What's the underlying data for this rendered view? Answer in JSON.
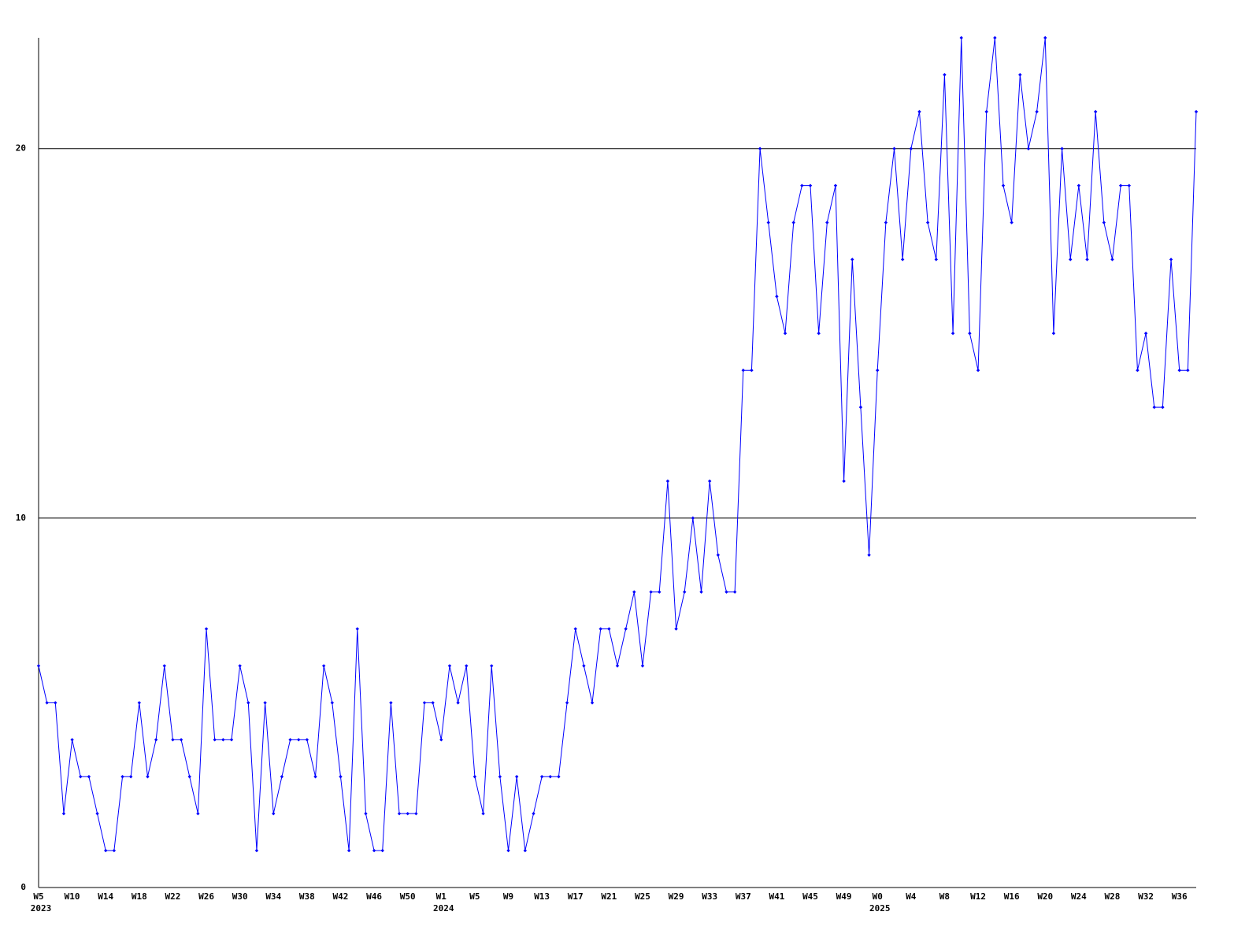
{
  "chart_data": {
    "type": "line",
    "categories": [
      "W5",
      null,
      null,
      null,
      "W10",
      null,
      null,
      null,
      "W14",
      null,
      null,
      null,
      "W18",
      null,
      null,
      null,
      "W22",
      null,
      null,
      null,
      "W26",
      null,
      null,
      null,
      "W30",
      null,
      null,
      null,
      "W34",
      null,
      null,
      null,
      "W38",
      null,
      null,
      null,
      "W42",
      null,
      null,
      null,
      "W46",
      null,
      null,
      null,
      "W50",
      null,
      null,
      null,
      "W1",
      null,
      null,
      null,
      "W5",
      null,
      null,
      null,
      "W9",
      null,
      null,
      null,
      "W13",
      null,
      null,
      null,
      "W17",
      null,
      null,
      null,
      "W21",
      null,
      null,
      null,
      "W25",
      null,
      null,
      null,
      "W29",
      null,
      null,
      null,
      "W33",
      null,
      null,
      null,
      "W37",
      null,
      null,
      null,
      "W41",
      null,
      null,
      null,
      "W45",
      null,
      null,
      null,
      "W49",
      null,
      null,
      null,
      "W0",
      null,
      null,
      null,
      "W4",
      null,
      null,
      null,
      "W8",
      null,
      null,
      null,
      "W12",
      null,
      null,
      null,
      "W16",
      null,
      null,
      null,
      "W20",
      null,
      null,
      null,
      "W24",
      null,
      null,
      null,
      "W28",
      null,
      null,
      null,
      "W32",
      null,
      null,
      null,
      "W36",
      null,
      null
    ],
    "year_labels": [
      "2023",
      null,
      null,
      null,
      null,
      null,
      null,
      null,
      null,
      null,
      null,
      null,
      null,
      null,
      null,
      null,
      null,
      null,
      null,
      null,
      null,
      null,
      null,
      null,
      null,
      null,
      null,
      null,
      null,
      null,
      null,
      null,
      null,
      null,
      null,
      null,
      null,
      null,
      null,
      null,
      null,
      null,
      null,
      null,
      null,
      null,
      null,
      null,
      "2024",
      null,
      null,
      null,
      null,
      null,
      null,
      null,
      null,
      null,
      null,
      null,
      null,
      null,
      null,
      null,
      null,
      null,
      null,
      null,
      null,
      null,
      null,
      null,
      null,
      null,
      null,
      null,
      null,
      null,
      null,
      null,
      null,
      null,
      null,
      null,
      null,
      null,
      null,
      null,
      null,
      null,
      null,
      null,
      null,
      null,
      null,
      null,
      null,
      null,
      null,
      null,
      "2025",
      null,
      null,
      null,
      null,
      null,
      null,
      null,
      null,
      null,
      null,
      null,
      null,
      null,
      null,
      null,
      null,
      null,
      null,
      null,
      null,
      null,
      null,
      null,
      null,
      null,
      null,
      null,
      null,
      null,
      null,
      null,
      null,
      null,
      null,
      null,
      null,
      null,
      null
    ],
    "series": [
      {
        "color": "#0000ff",
        "values": [
          6,
          5,
          5,
          2,
          4,
          3,
          3,
          2,
          1,
          1,
          3,
          3,
          5,
          3,
          4,
          6,
          4,
          4,
          3,
          2,
          7,
          4,
          4,
          4,
          6,
          5,
          1,
          5,
          2,
          3,
          4,
          4,
          4,
          3,
          6,
          5,
          3,
          1,
          7,
          2,
          1,
          1,
          5,
          2,
          2,
          2,
          5,
          5,
          4,
          6,
          5,
          6,
          3,
          2,
          6,
          3,
          1,
          3,
          1,
          2,
          3,
          3,
          3,
          5,
          7,
          6,
          5,
          7,
          7,
          6,
          7,
          8,
          6,
          8,
          8,
          11,
          7,
          8,
          10,
          8,
          11,
          9,
          8,
          8,
          14,
          14,
          20,
          18,
          16,
          15,
          18,
          19,
          19,
          15,
          18,
          19,
          11,
          17,
          13,
          9,
          14,
          18,
          20,
          17,
          20,
          21,
          18,
          17,
          22,
          15,
          23,
          15,
          14,
          21,
          23,
          19,
          18,
          22,
          20,
          21,
          23,
          15,
          20,
          17,
          19,
          17,
          21,
          18,
          17,
          19,
          19,
          14,
          15,
          13,
          13,
          17,
          14,
          14,
          21
        ]
      }
    ],
    "ylim": [
      0,
      23
    ],
    "yticks": [
      0,
      10,
      20
    ],
    "grid": true
  }
}
